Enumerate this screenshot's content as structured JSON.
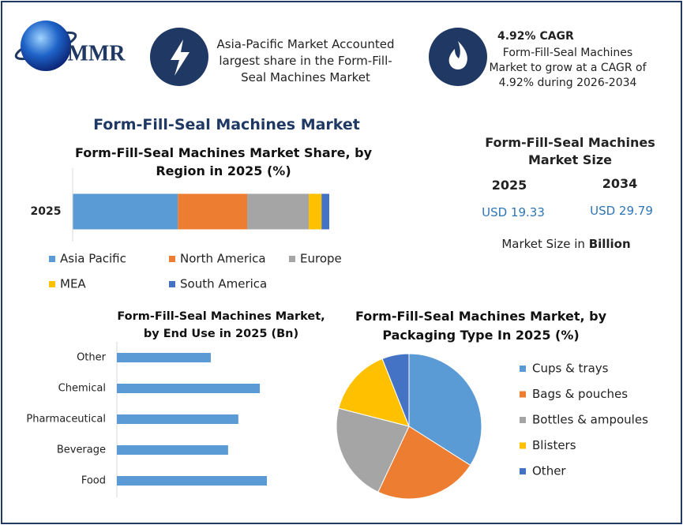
{
  "header": {
    "logo": "MMR",
    "fact1": "Asia-Pacific Market Accounted largest share in the Form-Fill-Seal Machines Market",
    "fact2_title": "4.92% CAGR",
    "fact2_text": "Form-Fill-Seal Machines Market to grow at a CAGR of 4.92% during 2026-2034"
  },
  "title": "Form-Fill-Seal Machines Market",
  "market_size": {
    "title": "Form-Fill-Seal Machines Market Size",
    "years": [
      "2025",
      "2034"
    ],
    "values": [
      "USD 19.33",
      "USD 29.79"
    ],
    "note": "Market Size in",
    "unit": "Billion"
  },
  "chart_data": [
    {
      "type": "bar",
      "orientation": "horizontal",
      "stacked": true,
      "title": "Form-Fill-Seal Machines Market Share, by Region in 2025 (%)",
      "categories": [
        "2025"
      ],
      "series": [
        {
          "name": "Asia Pacific",
          "color": "#5b9bd5",
          "values": [
            41
          ]
        },
        {
          "name": "North America",
          "color": "#ed7d31",
          "values": [
            27
          ]
        },
        {
          "name": "Europe",
          "color": "#a5a5a5",
          "values": [
            24
          ]
        },
        {
          "name": "MEA",
          "color": "#ffc000",
          "values": [
            5
          ]
        },
        {
          "name": "South America",
          "color": "#4472c4",
          "values": [
            3
          ]
        }
      ],
      "legend": "bottom"
    },
    {
      "type": "bar",
      "orientation": "horizontal",
      "title": "Form-Fill-Seal Machines Market, by End Use in 2025 (Bn)",
      "categories": [
        "Other",
        "Chemical",
        "Pharmaceutical",
        "Beverage",
        "Food"
      ],
      "values": [
        2.93,
        4.46,
        3.79,
        3.47,
        4.68
      ],
      "color": "#5b9bd5"
    },
    {
      "type": "pie",
      "title": "Form-Fill-Seal Machines Market, by Packaging Type In 2025 (%)",
      "categories": [
        "Cups & trays",
        "Bags & pouches",
        "Bottles & ampoules",
        "Blisters",
        "Other"
      ],
      "values": [
        34,
        23,
        22,
        15,
        6
      ],
      "colors": [
        "#5b9bd5",
        "#ed7d31",
        "#a5a5a5",
        "#ffc000",
        "#4472c4"
      ],
      "legend": "right"
    }
  ]
}
